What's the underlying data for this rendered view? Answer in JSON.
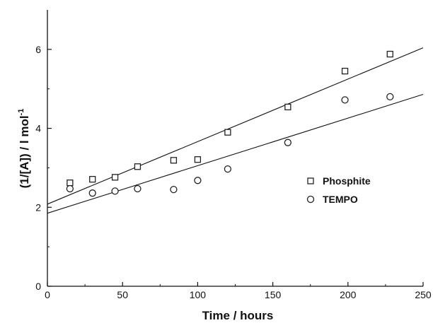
{
  "chart_data": {
    "type": "scatter",
    "title": "",
    "xlabel": "Time / hours",
    "ylabel_main": "(1/[A]) / l mol",
    "ylabel_sup": "-1",
    "xlim": [
      0,
      250
    ],
    "ylim": [
      0,
      7
    ],
    "xticks": [
      0,
      50,
      100,
      150,
      200,
      250
    ],
    "yticks": [
      0,
      2,
      4,
      6
    ],
    "xtick_labels": [
      "0",
      "50",
      "100",
      "150",
      "200",
      "250"
    ],
    "ytick_labels": [
      "0",
      "2",
      "4",
      "6"
    ],
    "grid": false,
    "legend_position": "right",
    "series": [
      {
        "name": "Phosphite",
        "marker": "square",
        "x": [
          15,
          30,
          45,
          60,
          84,
          100,
          120,
          160,
          198,
          228
        ],
        "y": [
          2.62,
          2.71,
          2.76,
          3.03,
          3.19,
          3.21,
          3.9,
          4.54,
          5.45,
          5.88
        ],
        "fit": {
          "intercept": 2.08,
          "slope": 0.01584
        }
      },
      {
        "name": "TEMPO",
        "marker": "circle",
        "x": [
          15,
          30,
          45,
          60,
          84,
          100,
          120,
          160,
          198,
          228
        ],
        "y": [
          2.47,
          2.36,
          2.41,
          2.47,
          2.45,
          2.68,
          2.97,
          3.64,
          4.72,
          4.8
        ],
        "fit": {
          "intercept": 1.85,
          "slope": 0.01204
        }
      }
    ]
  }
}
